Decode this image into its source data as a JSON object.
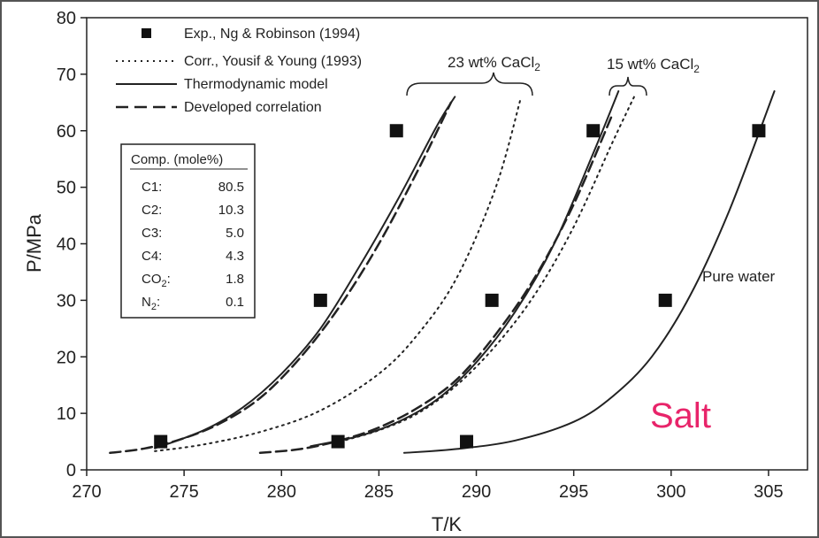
{
  "chart_data": {
    "type": "line",
    "xlabel": "T/K",
    "ylabel": "P/MPa",
    "xlim": [
      270,
      307
    ],
    "ylim": [
      0,
      80
    ],
    "x_ticks": [
      270,
      275,
      280,
      285,
      290,
      295,
      300,
      305
    ],
    "y_ticks": [
      0,
      10,
      20,
      30,
      40,
      50,
      60,
      70,
      80
    ],
    "legend": {
      "placement": "top-left",
      "entries": [
        {
          "label": "Exp., Ng & Robinson (1994)",
          "style": "square-marker"
        },
        {
          "label": "Corr., Yousif & Young (1993)",
          "style": "dotted"
        },
        {
          "label": "Thermodynamic model",
          "style": "solid"
        },
        {
          "label": "Developed correlation",
          "style": "dashed"
        }
      ]
    },
    "composition_table": {
      "header": "Comp. (mole%)",
      "rows": [
        {
          "name": "C1:",
          "value": "80.5"
        },
        {
          "name": "C2:",
          "value": "10.3"
        },
        {
          "name": "C3:",
          "value": "5.0"
        },
        {
          "name": "C4:",
          "value": "4.3"
        },
        {
          "name": "CO",
          "sub": "2",
          "suffix": ":",
          "value": "1.8"
        },
        {
          "name": "N",
          "sub": "2",
          "suffix": ":",
          "value": "0.1"
        }
      ]
    },
    "annotations": [
      {
        "text": "23 wt% CaCl",
        "sub": "2"
      },
      {
        "text": "15 wt% CaCl",
        "sub": "2"
      },
      {
        "text": "Pure water"
      }
    ],
    "overlay_text": "Salt",
    "series": [
      {
        "group": "23 wt% CaCl2",
        "style": "square-marker",
        "points": [
          [
            273.8,
            5
          ],
          [
            282.0,
            30
          ],
          [
            285.9,
            60
          ]
        ]
      },
      {
        "group": "23 wt% CaCl2",
        "style": "solid",
        "points": [
          [
            273.5,
            3.8
          ],
          [
            276,
            7
          ],
          [
            278,
            11
          ],
          [
            280,
            17
          ],
          [
            282,
            25
          ],
          [
            284,
            36
          ],
          [
            286,
            48
          ],
          [
            288,
            61
          ],
          [
            288.9,
            66
          ]
        ]
      },
      {
        "group": "23 wt% CaCl2",
        "style": "dashed",
        "points": [
          [
            271.2,
            3.0
          ],
          [
            273,
            3.8
          ],
          [
            275,
            5.6
          ],
          [
            277,
            8.5
          ],
          [
            279,
            13
          ],
          [
            281,
            20
          ],
          [
            283,
            29
          ],
          [
            285,
            40
          ],
          [
            287,
            53
          ],
          [
            288.7,
            65
          ]
        ]
      },
      {
        "group": "23 wt% CaCl2",
        "style": "dotted",
        "points": [
          [
            273.5,
            3.3
          ],
          [
            276,
            4.5
          ],
          [
            279,
            6.8
          ],
          [
            282,
            10.5
          ],
          [
            285,
            17
          ],
          [
            287,
            24
          ],
          [
            289,
            34
          ],
          [
            291,
            50
          ],
          [
            292.3,
            66
          ]
        ]
      },
      {
        "group": "15 wt% CaCl2",
        "style": "square-marker",
        "points": [
          [
            282.9,
            5
          ],
          [
            290.8,
            30
          ],
          [
            296.0,
            60
          ]
        ]
      },
      {
        "group": "15 wt% CaCl2",
        "style": "solid",
        "points": [
          [
            281.5,
            4.2
          ],
          [
            284,
            6
          ],
          [
            286,
            8.5
          ],
          [
            288,
            12.5
          ],
          [
            290,
            19
          ],
          [
            292,
            28
          ],
          [
            294,
            40
          ],
          [
            296,
            56
          ],
          [
            297.3,
            67
          ]
        ]
      },
      {
        "group": "15 wt% CaCl2",
        "style": "dashed",
        "points": [
          [
            278.9,
            3.0
          ],
          [
            281,
            3.7
          ],
          [
            283,
            5.2
          ],
          [
            285,
            7.5
          ],
          [
            287,
            11
          ],
          [
            289,
            16
          ],
          [
            291,
            24
          ],
          [
            293,
            34
          ],
          [
            295,
            47
          ],
          [
            297,
            63
          ]
        ]
      },
      {
        "group": "15 wt% CaCl2",
        "style": "dotted",
        "points": [
          [
            283,
            5
          ],
          [
            285,
            7
          ],
          [
            287,
            10
          ],
          [
            289,
            15
          ],
          [
            291,
            22
          ],
          [
            293,
            31
          ],
          [
            295,
            43
          ],
          [
            297,
            58
          ],
          [
            298.1,
            66
          ]
        ]
      },
      {
        "group": "Pure water",
        "style": "square-marker",
        "points": [
          [
            289.5,
            5
          ],
          [
            299.7,
            30
          ],
          [
            304.5,
            60
          ]
        ]
      },
      {
        "group": "Pure water",
        "style": "solid",
        "points": [
          [
            286.3,
            3.0
          ],
          [
            289,
            3.7
          ],
          [
            292,
            5.2
          ],
          [
            295,
            8.5
          ],
          [
            297,
            13
          ],
          [
            299,
            20
          ],
          [
            301,
            31
          ],
          [
            303,
            46
          ],
          [
            305.3,
            67
          ]
        ]
      }
    ]
  }
}
